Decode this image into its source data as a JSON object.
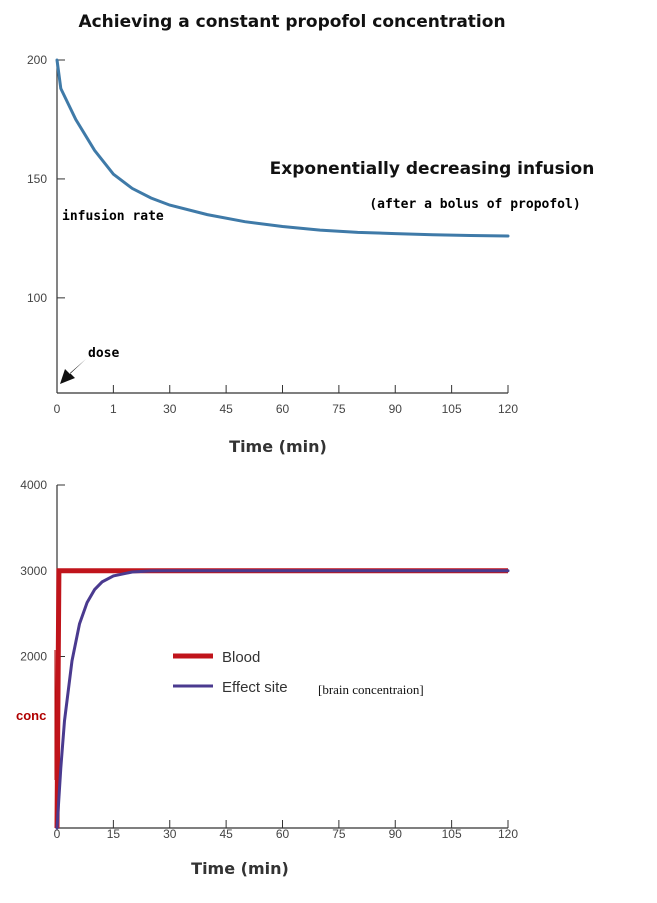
{
  "title": "Achieving a constant propofol concentration",
  "colors": {
    "infusion": "#3f7aa8",
    "blood": "#c0141b",
    "effect": "#4a3a8f",
    "conc": "#b00000"
  },
  "annotations": {
    "top_heading": "Exponentially decreasing infusion",
    "top_subheading": "(after a bolus of propofol)",
    "infusion_rate": "infusion rate",
    "dose": "dose",
    "conc": "conc",
    "brain_note": "[brain concentraion]"
  },
  "chart_data": [
    {
      "type": "line",
      "xlabel": "Time (min)",
      "ylabel": "",
      "xlim": [
        0,
        120
      ],
      "ylim": [
        60,
        200
      ],
      "xticks": [
        "0",
        "1",
        "30",
        "45",
        "60",
        "75",
        "90",
        "105",
        "120"
      ],
      "yticks": [
        "200",
        "150",
        "100"
      ],
      "series": [
        {
          "x": [
            0,
            1,
            5,
            10,
            15,
            20,
            25,
            30,
            40,
            50,
            60,
            70,
            80,
            90,
            100,
            110,
            120
          ],
          "values": [
            200,
            188,
            175,
            162,
            152,
            146,
            142,
            139,
            135,
            132,
            130,
            128.5,
            127.5,
            127,
            126.5,
            126.2,
            126
          ]
        }
      ]
    },
    {
      "type": "line",
      "xlabel": "Time (min)",
      "ylabel": "",
      "xlim": [
        0,
        120
      ],
      "ylim": [
        0,
        4000
      ],
      "xticks": [
        "0",
        "15",
        "30",
        "45",
        "60",
        "75",
        "90",
        "105",
        "120"
      ],
      "yticks": [
        "4000",
        "3000",
        "2000"
      ],
      "legend": [
        "Blood",
        "Effect site"
      ],
      "series": [
        {
          "name": "Blood",
          "x": [
            0,
            0.5,
            120
          ],
          "values": [
            0,
            3000,
            3000
          ]
        },
        {
          "name": "Effect site",
          "x": [
            0,
            1,
            2,
            4,
            6,
            8,
            10,
            12,
            15,
            20,
            25,
            30,
            120
          ],
          "values": [
            0,
            700,
            1250,
            1950,
            2380,
            2630,
            2780,
            2870,
            2940,
            2985,
            2998,
            3000,
            3000
          ]
        }
      ]
    }
  ]
}
